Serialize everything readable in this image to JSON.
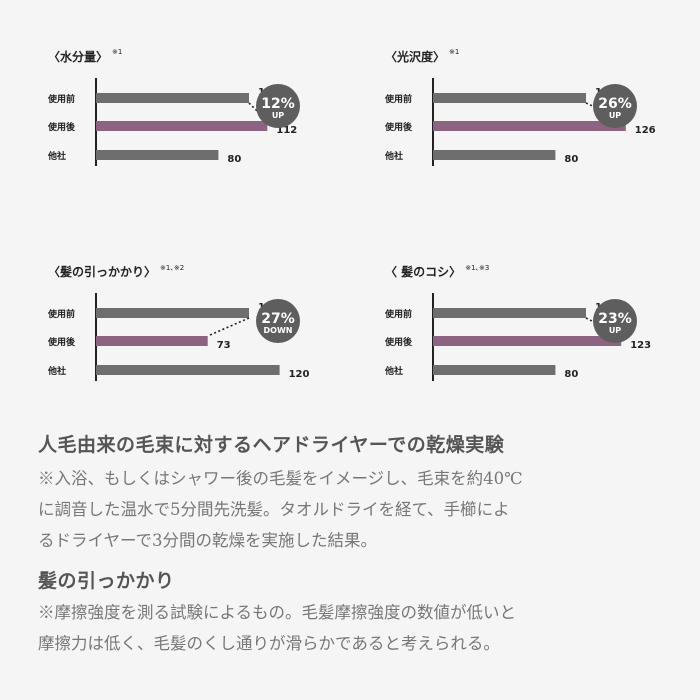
{
  "colors": {
    "bar_default": "#6e6e6e",
    "bar_highlight": "#8c6481",
    "badge_bg": "#5e5e5e",
    "axis": "#222222"
  },
  "chart_data": [
    {
      "type": "bar",
      "orientation": "horizontal",
      "title": "〈水分量〉",
      "note": "※1",
      "categories": [
        "使用前",
        "使用後",
        "他社"
      ],
      "values": [
        100,
        112,
        80
      ],
      "highlight_index": 1,
      "badge": {
        "percent": "12%",
        "direction": "UP"
      }
    },
    {
      "type": "bar",
      "orientation": "horizontal",
      "title": "〈光沢度〉",
      "note": "※1",
      "categories": [
        "使用前",
        "使用後",
        "他社"
      ],
      "values": [
        100,
        126,
        80
      ],
      "highlight_index": 1,
      "badge": {
        "percent": "26%",
        "direction": "UP"
      }
    },
    {
      "type": "bar",
      "orientation": "horizontal",
      "title": "〈髪の引っかかり〉",
      "note": "※1､※2",
      "categories": [
        "使用前",
        "使用後",
        "他社"
      ],
      "values": [
        100,
        73,
        120
      ],
      "highlight_index": 1,
      "badge": {
        "percent": "27%",
        "direction": "DOWN"
      }
    },
    {
      "type": "bar",
      "orientation": "horizontal",
      "title": "〈 髪のコシ〉",
      "note": "※1､※3",
      "categories": [
        "使用前",
        "使用後",
        "他社"
      ],
      "values": [
        100,
        123,
        80
      ],
      "highlight_index": 1,
      "badge": {
        "percent": "23%",
        "direction": "UP"
      }
    }
  ],
  "text": {
    "heading1": "人毛由来の毛束に対するヘアドライヤーでの乾燥実験",
    "body1": "※入浴、もしくはシャワー後の毛髪をイメージし、毛束を約40℃\nに調音した温水で5分間先洗髪。タオルドライを経て、手櫛によ\nるドライヤーで3分間の乾燥を実施した結果。",
    "heading2": "髪の引っかかり",
    "body2": "※摩擦強度を測る試験によるもの。毛髪摩擦強度の数値が低いと\n摩擦力は低く、毛髪のくし通りが滑らかであると考えられる。"
  }
}
